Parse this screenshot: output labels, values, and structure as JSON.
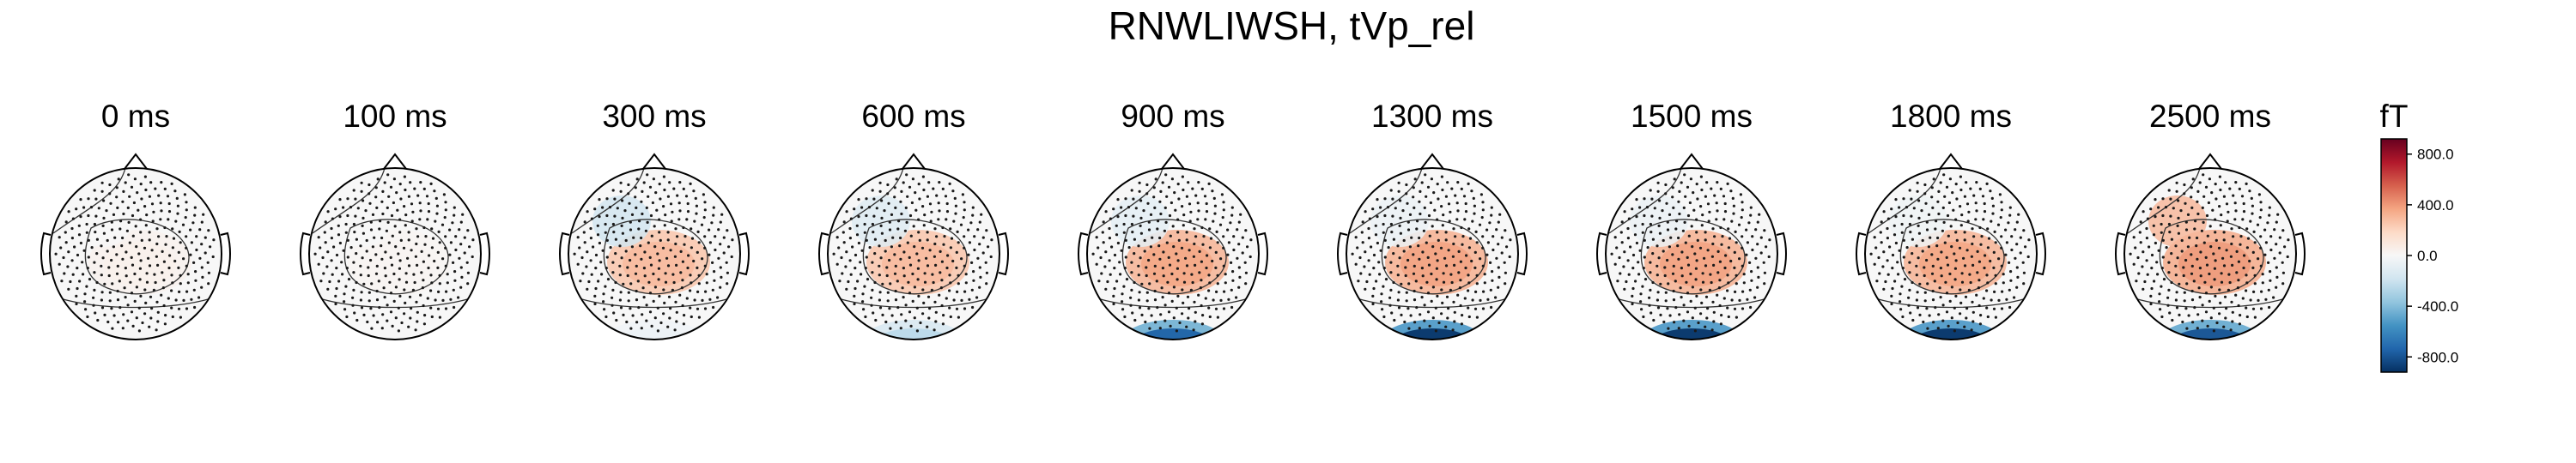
{
  "chart_data": {
    "type": "heatmap",
    "title": "RNWLIWSH, tVp_rel",
    "panels": [
      {
        "label": "0 ms",
        "time_ms": 0,
        "posterior": 0,
        "central": 40,
        "left_front": 0
      },
      {
        "label": "100 ms",
        "time_ms": 100,
        "posterior": 0,
        "central": 20,
        "left_front": 0
      },
      {
        "label": "300 ms",
        "time_ms": 300,
        "posterior": -60,
        "central": 260,
        "left_front": -180
      },
      {
        "label": "600 ms",
        "time_ms": 600,
        "posterior": -250,
        "central": 260,
        "left_front": -120
      },
      {
        "label": "900 ms",
        "time_ms": 900,
        "posterior": -750,
        "central": 320,
        "left_front": -90
      },
      {
        "label": "1300 ms",
        "time_ms": 1300,
        "posterior": -900,
        "central": 330,
        "left_front": -60
      },
      {
        "label": "1500 ms",
        "time_ms": 1500,
        "posterior": -900,
        "central": 330,
        "left_front": -60
      },
      {
        "label": "1800 ms",
        "time_ms": 1800,
        "posterior": -900,
        "central": 320,
        "left_front": -40
      },
      {
        "label": "2500 ms",
        "time_ms": 2500,
        "posterior": -800,
        "central": 350,
        "left_front": 300
      }
    ],
    "colorbar": {
      "unit": "fT",
      "ticks": [
        "800.0",
        "400.0",
        "0.0",
        "-400.0",
        "-800.0"
      ],
      "tick_values": [
        800,
        400,
        0,
        -400,
        -800
      ],
      "vmin": -920,
      "vmax": 920,
      "colormap": "RdBu_r"
    }
  },
  "colors": {
    "outline": "#000000",
    "sensor": "#1a1a1a",
    "red_max": "#67001f",
    "blue_max": "#053061"
  }
}
